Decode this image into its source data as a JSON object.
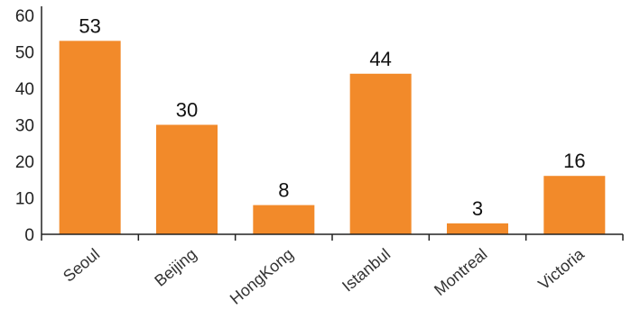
{
  "chart_data": {
    "type": "bar",
    "categories": [
      "Seoul",
      "Beijing",
      "HongKong",
      "Istanbul",
      "Montreal",
      "Victoria"
    ],
    "values": [
      53,
      30,
      8,
      44,
      3,
      16
    ],
    "ylim": [
      0,
      60
    ],
    "yticks": [
      0,
      10,
      20,
      30,
      40,
      50,
      60
    ],
    "bar_color": "#f28a2a",
    "grid": false,
    "legend": "none"
  }
}
